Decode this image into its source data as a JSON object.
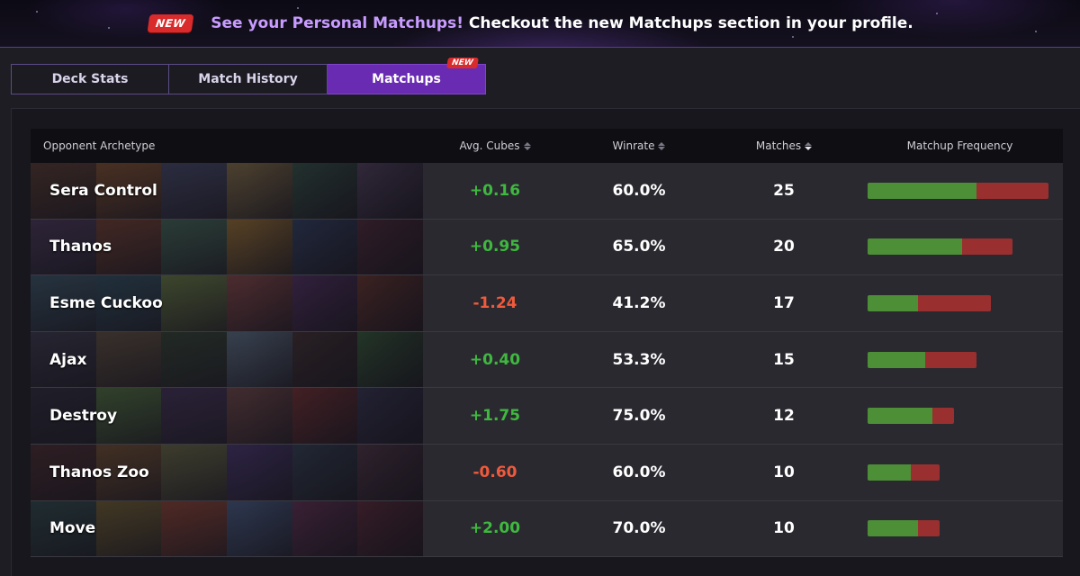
{
  "banner": {
    "badge": "NEW",
    "highlight": "See your Personal Matchups!",
    "text": "Checkout the new Matchups section in your profile."
  },
  "tabs": [
    {
      "label": "Deck Stats",
      "active": false
    },
    {
      "label": "Match History",
      "active": false
    },
    {
      "label": "Matchups",
      "active": true,
      "badge": "NEW"
    }
  ],
  "table": {
    "headers": {
      "archetype": "Opponent Archetype",
      "cubes": "Avg. Cubes",
      "winrate": "Winrate",
      "matches": "Matches",
      "frequency": "Matchup Frequency"
    },
    "sort": {
      "column": "matches",
      "direction": "desc"
    },
    "rows": [
      {
        "name": "Sera Control",
        "cubes": "+0.16",
        "winrate": "60.0%",
        "matches": "25",
        "win_fraction": 0.6,
        "frequency_fraction": 1.0
      },
      {
        "name": "Thanos",
        "cubes": "+0.95",
        "winrate": "65.0%",
        "matches": "20",
        "win_fraction": 0.65,
        "frequency_fraction": 0.8
      },
      {
        "name": "Esme Cuckoo",
        "cubes": "-1.24",
        "winrate": "41.2%",
        "matches": "17",
        "win_fraction": 0.412,
        "frequency_fraction": 0.68
      },
      {
        "name": "Ajax",
        "cubes": "+0.40",
        "winrate": "53.3%",
        "matches": "15",
        "win_fraction": 0.533,
        "frequency_fraction": 0.6
      },
      {
        "name": "Destroy",
        "cubes": "+1.75",
        "winrate": "75.0%",
        "matches": "12",
        "win_fraction": 0.75,
        "frequency_fraction": 0.48
      },
      {
        "name": "Thanos Zoo",
        "cubes": "-0.60",
        "winrate": "60.0%",
        "matches": "10",
        "win_fraction": 0.6,
        "frequency_fraction": 0.4
      },
      {
        "name": "Move",
        "cubes": "+2.00",
        "winrate": "70.0%",
        "matches": "10",
        "win_fraction": 0.7,
        "frequency_fraction": 0.4
      }
    ]
  },
  "colors": {
    "accent": "#6a2bb3",
    "positive": "#3fb83f",
    "negative": "#f05a3c",
    "bar_win": "#4c8f37",
    "bar_loss": "#9a2f2f"
  }
}
